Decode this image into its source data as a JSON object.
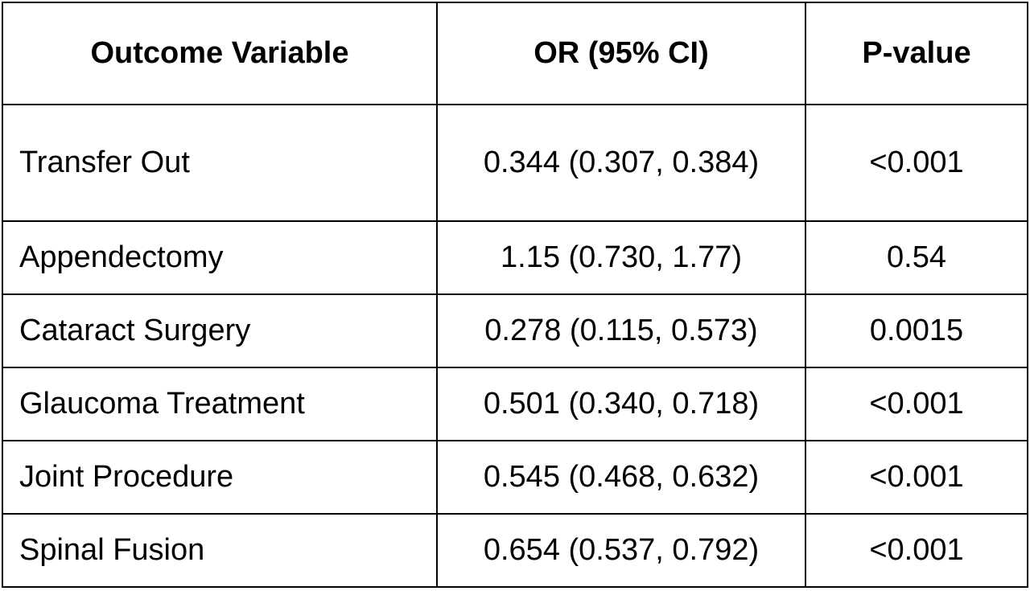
{
  "table": {
    "headers": {
      "outcome": "Outcome Variable",
      "or": "OR (95% CI)",
      "p": "P-value"
    },
    "rows": [
      {
        "outcome": "Transfer Out",
        "or": "0.344 (0.307, 0.384)",
        "p": "<0.001"
      },
      {
        "outcome": "Appendectomy",
        "or": "1.15 (0.730, 1.77)",
        "p": "0.54"
      },
      {
        "outcome": "Cataract Surgery",
        "or": "0.278 (0.115, 0.573)",
        "p": "0.0015"
      },
      {
        "outcome": "Glaucoma Treatment",
        "or": "0.501 (0.340, 0.718)",
        "p": "<0.001"
      },
      {
        "outcome": "Joint Procedure",
        "or": "0.545 (0.468, 0.632)",
        "p": "<0.001"
      },
      {
        "outcome": "Spinal Fusion",
        "or": "0.654 (0.537, 0.792)",
        "p": "<0.001"
      }
    ]
  }
}
